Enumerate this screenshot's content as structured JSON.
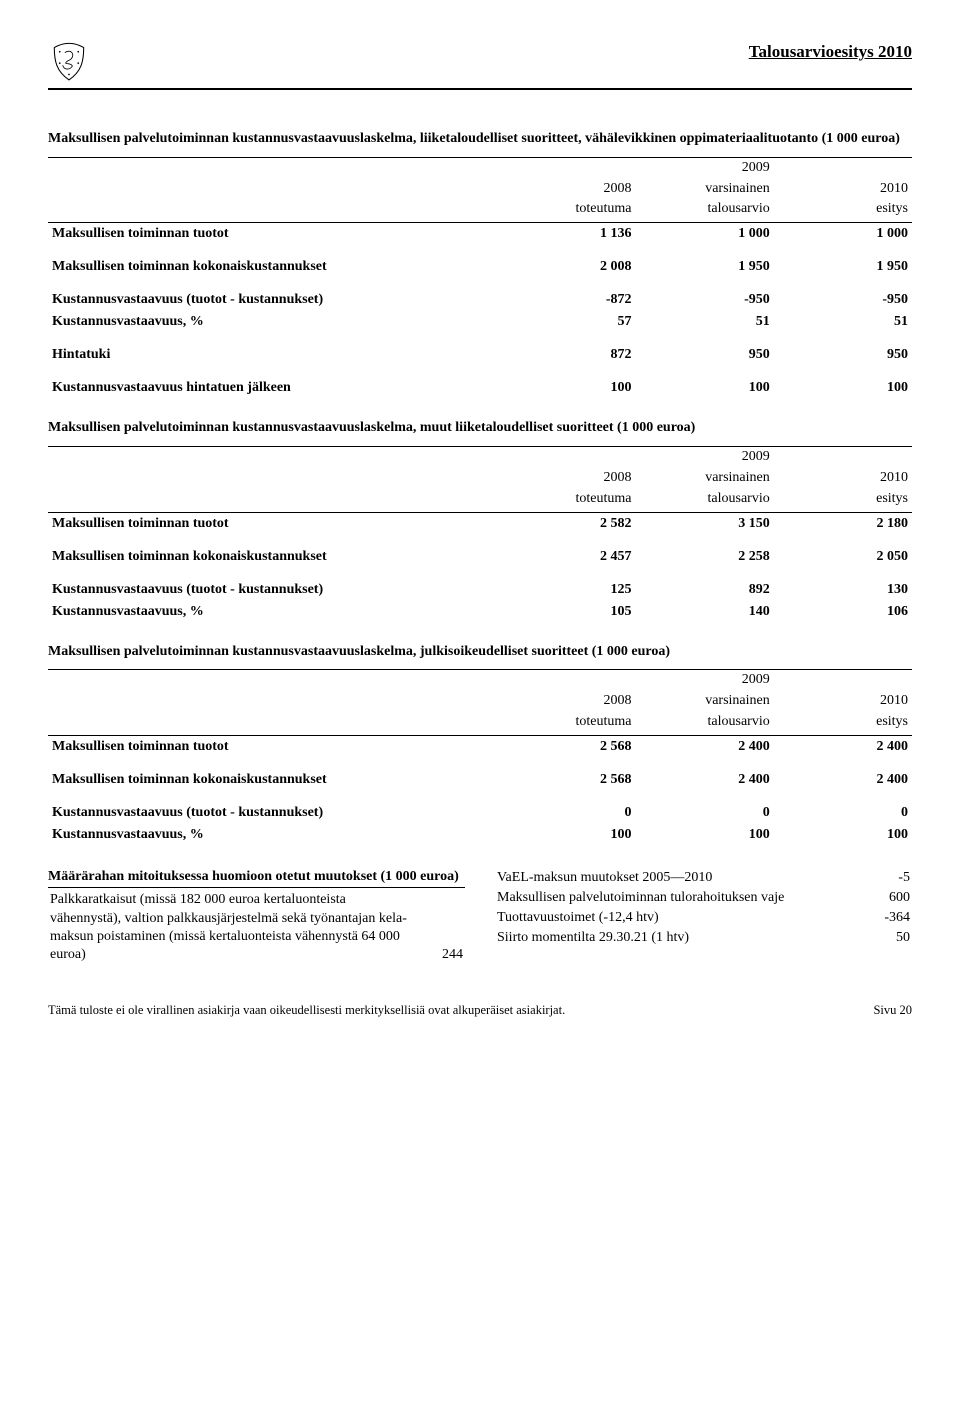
{
  "header": {
    "doc_title": "Talousarvioesitys 2010"
  },
  "tables": {
    "col_headers": {
      "c1a": "2008",
      "c1b": "toteutuma",
      "c2a": "2009",
      "c2b": "varsinainen",
      "c2c": "talousarvio",
      "c3a": "2010",
      "c3b": "esitys"
    },
    "t1": {
      "title": "Maksullisen palvelutoiminnan kustannusvastaavuuslaskelma, liiketaloudelliset suoritteet, vähälevikkinen oppimateriaalituotanto (1 000 euroa)",
      "rows": [
        {
          "bold": true,
          "label": "Maksullisen toiminnan tuotot",
          "v": [
            "1 136",
            "1 000",
            "1 000"
          ]
        },
        {
          "bold": true,
          "spacer": true,
          "label": "Maksullisen toiminnan kokonaiskustannukset",
          "v": [
            "2 008",
            "1 950",
            "1 950"
          ]
        },
        {
          "bold": true,
          "spacer": true,
          "label": "Kustannusvastaavuus (tuotot - kustannukset)",
          "v": [
            "-872",
            "-950",
            "-950"
          ]
        },
        {
          "bold": true,
          "label": "Kustannusvastaavuus, %",
          "v": [
            "57",
            "51",
            "51"
          ]
        },
        {
          "bold": true,
          "spacer": true,
          "label": "Hintatuki",
          "v": [
            "872",
            "950",
            "950"
          ]
        },
        {
          "bold": true,
          "spacer": true,
          "label": "Kustannusvastaavuus hintatuen jälkeen",
          "v": [
            "100",
            "100",
            "100"
          ]
        }
      ]
    },
    "t2": {
      "title": "Maksullisen palvelutoiminnan kustannusvastaavuuslaskelma, muut liiketaloudelliset suoritteet (1 000 euroa)",
      "rows": [
        {
          "bold": true,
          "label": "Maksullisen toiminnan tuotot",
          "v": [
            "2 582",
            "3 150",
            "2 180"
          ]
        },
        {
          "bold": true,
          "spacer": true,
          "label": "Maksullisen toiminnan kokonaiskustannukset",
          "v": [
            "2 457",
            "2 258",
            "2 050"
          ]
        },
        {
          "bold": true,
          "spacer": true,
          "label": "Kustannusvastaavuus (tuotot - kustannukset)",
          "v": [
            "125",
            "892",
            "130"
          ]
        },
        {
          "bold": true,
          "label": "Kustannusvastaavuus, %",
          "v": [
            "105",
            "140",
            "106"
          ]
        }
      ]
    },
    "t3": {
      "title": "Maksullisen palvelutoiminnan kustannusvastaavuuslaskelma, julkisoikeudelliset suoritteet (1 000 euroa)",
      "rows": [
        {
          "bold": true,
          "label": "Maksullisen toiminnan tuotot",
          "v": [
            "2 568",
            "2 400",
            "2 400"
          ]
        },
        {
          "bold": true,
          "spacer": true,
          "label": "Maksullisen toiminnan kokonaiskustannukset",
          "v": [
            "2 568",
            "2 400",
            "2 400"
          ]
        },
        {
          "bold": true,
          "spacer": true,
          "label": "Kustannusvastaavuus (tuotot - kustannukset)",
          "v": [
            "0",
            "0",
            "0"
          ]
        },
        {
          "bold": true,
          "label": "Kustannusvastaavuus, %",
          "v": [
            "100",
            "100",
            "100"
          ]
        }
      ]
    }
  },
  "bottom": {
    "left": {
      "title": "Määrärahan mitoituksessa huomioon otetut muutokset (1 000 euroa)",
      "rows": [
        {
          "label": "Palkkaratkaisut (missä 182 000 euroa kertaluonteista vähennystä), valtion palkkausjärjestelmä sekä työnantajan kela-maksun poistaminen (missä kertaluonteista vähennystä 64 000 euroa)",
          "v": "244"
        }
      ]
    },
    "right": {
      "rows": [
        {
          "label": "VaEL-maksun muutokset 2005—2010",
          "v": "-5"
        },
        {
          "label": "Maksullisen palvelutoiminnan tulorahoituksen vaje",
          "v": "600"
        },
        {
          "label": "Tuottavuustoimet (-12,4 htv)",
          "v": "-364"
        },
        {
          "label": "Siirto momentilta 29.30.21 (1 htv)",
          "v": "50"
        }
      ]
    }
  },
  "footer": {
    "left": "Tämä tuloste ei ole virallinen asiakirja vaan oikeudellisesti merkityksellisiä ovat alkuperäiset asiakirjat.",
    "right": "Sivu 20"
  }
}
